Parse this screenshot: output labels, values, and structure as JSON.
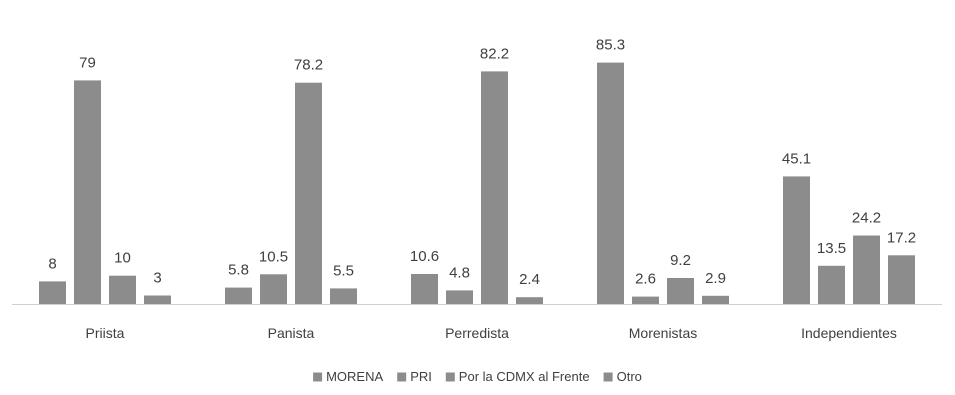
{
  "chart_data": {
    "type": "bar",
    "categories": [
      "Priista",
      "Panista",
      "Perredista",
      "Morenistas",
      "Independientes"
    ],
    "series": [
      {
        "name": "MORENA",
        "values": [
          8,
          5.8,
          10.6,
          85.3,
          45.1
        ]
      },
      {
        "name": "PRI",
        "values": [
          79,
          10.5,
          4.8,
          2.6,
          13.5
        ]
      },
      {
        "name": "Por la CDMX al Frente",
        "values": [
          10,
          78.2,
          82.2,
          9.2,
          24.2
        ]
      },
      {
        "name": "Otro",
        "values": [
          3,
          5.5,
          2.4,
          2.9,
          17.2
        ]
      }
    ],
    "value_labels": [
      [
        "8",
        "5.8",
        "10.6",
        "85.3",
        "45.1"
      ],
      [
        "79",
        "10.5",
        "4.8",
        "2.6",
        "13.5"
      ],
      [
        "10",
        "78.2",
        "82.2",
        "9.2",
        "24.2"
      ],
      [
        "3",
        "5.5",
        "2.4",
        "2.9",
        "17.2"
      ]
    ],
    "ylim": [
      0,
      90
    ],
    "grid": false,
    "legend_position": "bottom",
    "bar_color": "#8c8c8c"
  }
}
